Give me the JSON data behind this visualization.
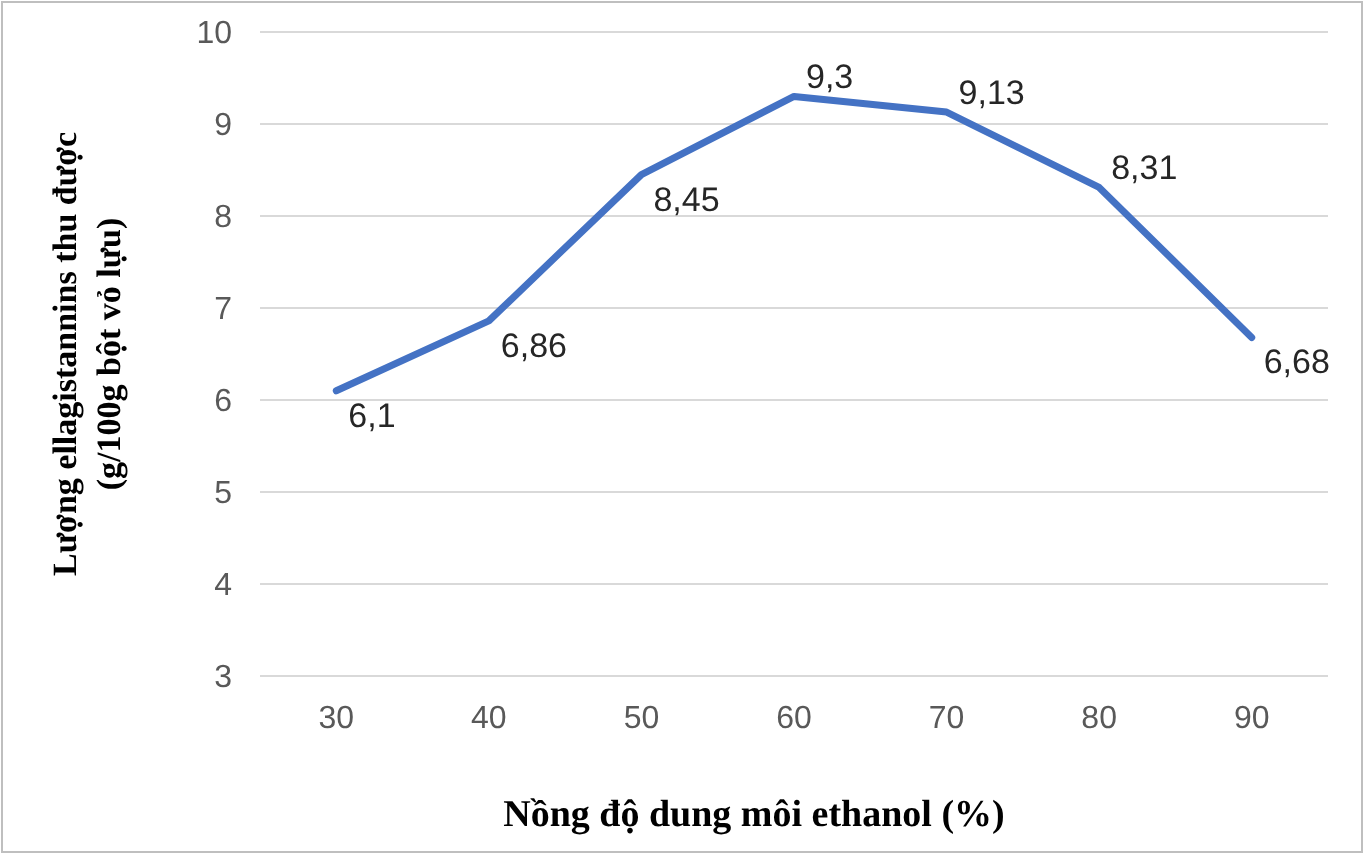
{
  "chart_data": {
    "type": "line",
    "xlabel": "Nồng độ dung môi ethanol (%)",
    "ylabel": "Lượng ellagistannins thu được\n(g/100g bột vỏ lựu)",
    "categories": [
      "30",
      "40",
      "50",
      "60",
      "70",
      "80",
      "90"
    ],
    "values": [
      6.1,
      6.86,
      8.45,
      9.3,
      9.13,
      8.31,
      6.68
    ],
    "value_labels": [
      "6,1",
      "6,86",
      "8,45",
      "9,3",
      "9,13",
      "8,31",
      "6,68"
    ],
    "color": "#4472c4",
    "ylim": [
      3,
      10
    ],
    "yticks": [
      3,
      4,
      5,
      6,
      7,
      8,
      9,
      10
    ],
    "grid": "y",
    "marker": "none",
    "line_style": "solid"
  }
}
